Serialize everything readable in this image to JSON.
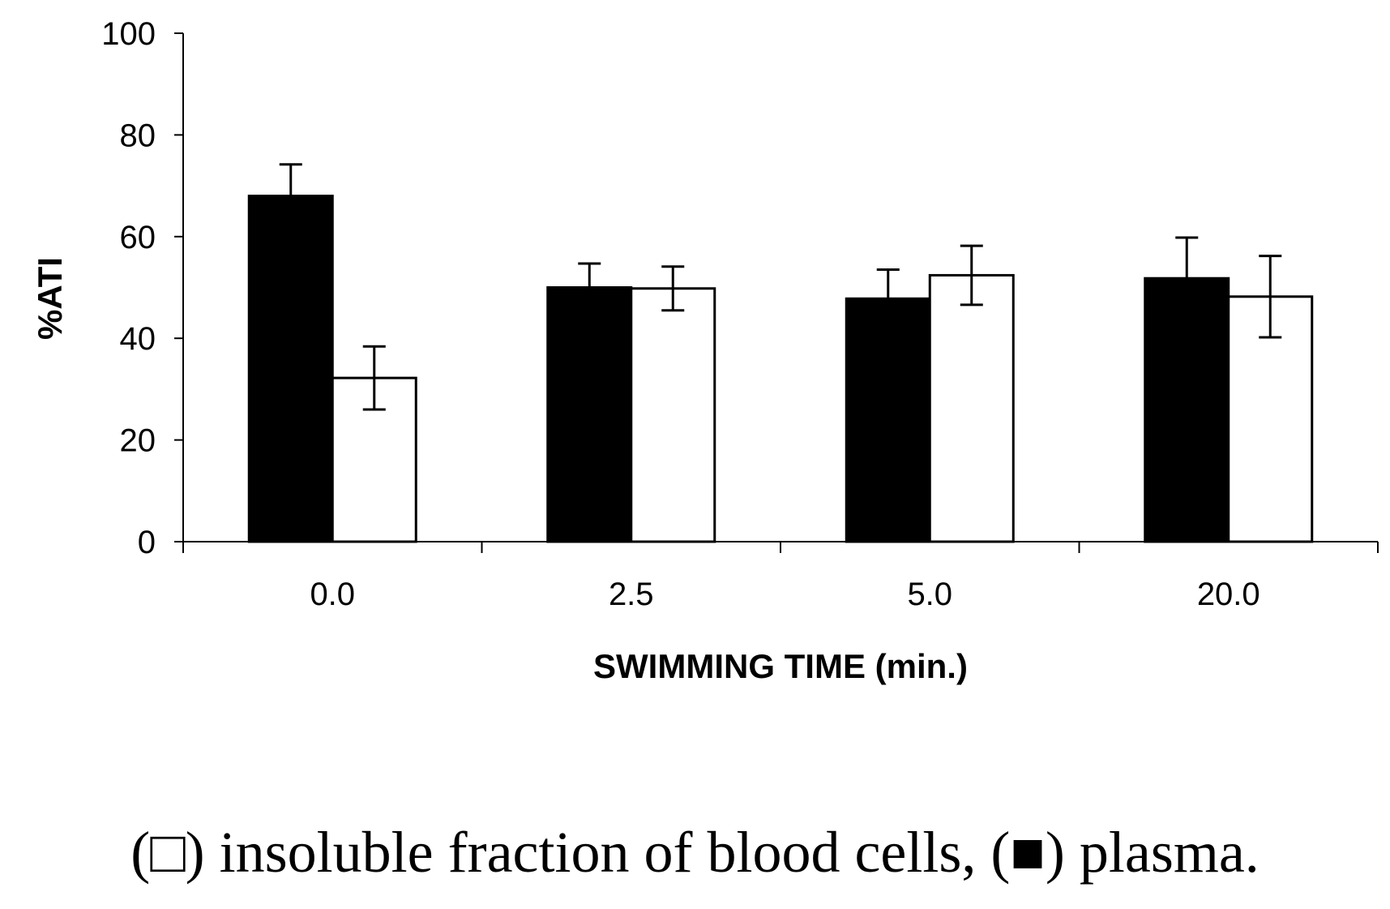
{
  "chart_data": {
    "type": "bar",
    "categories": [
      "0.0",
      "2.5",
      "5.0",
      "20.0"
    ],
    "xlabel": "SWIMMING TIME (min.)",
    "ylabel": "%ATI",
    "ylim": [
      0,
      100
    ],
    "yticks": [
      "0",
      "20",
      "40",
      "60",
      "80",
      "100"
    ],
    "grid": false,
    "series": [
      {
        "name": "plasma",
        "color": "#000000",
        "values": [
          68,
          50,
          47.8,
          51.8
        ],
        "errors": [
          6.2,
          4.7,
          5.7,
          8
        ]
      },
      {
        "name": "insoluble fraction of blood cells",
        "color": "#ffffff",
        "values": [
          32.2,
          49.8,
          52.4,
          48.2
        ],
        "errors": [
          6.2,
          4.3,
          5.8,
          8
        ]
      }
    ]
  },
  "caption": "(□) insoluble fraction of blood cells, (■) plasma."
}
